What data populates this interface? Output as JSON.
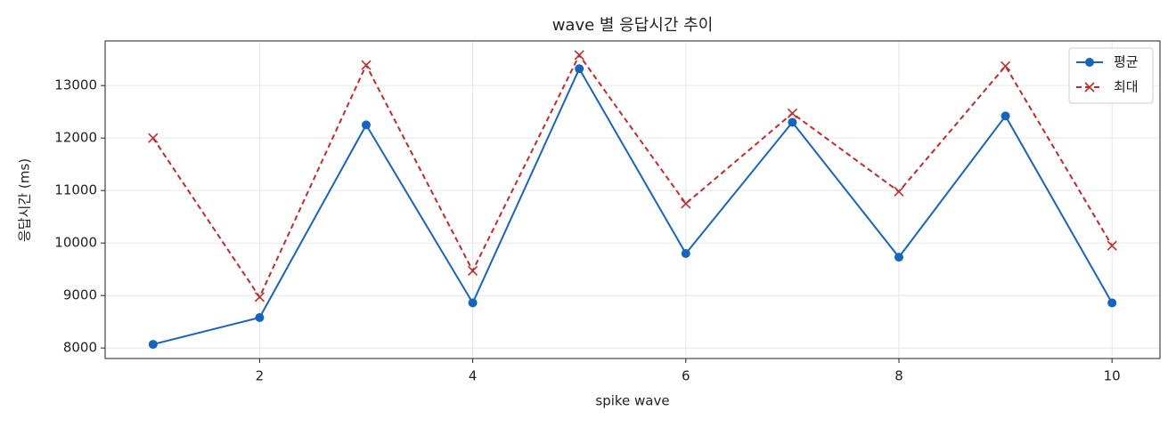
{
  "chart_data": {
    "type": "line",
    "title": "wave 별 응답시간 추이",
    "x_label": "spike wave",
    "y_label": "응답시간 (ms)",
    "x": [
      1,
      2,
      3,
      4,
      5,
      6,
      7,
      8,
      9,
      10
    ],
    "series": [
      {
        "name": "평균",
        "color": "#1565c0",
        "marker": "o",
        "linestyle": "solid",
        "values": [
          8070,
          8580,
          12250,
          8860,
          13320,
          9800,
          12300,
          9730,
          12420,
          8860
        ]
      },
      {
        "name": "최대",
        "color": "#c62828",
        "marker": "x",
        "linestyle": "dashed",
        "values": [
          12000,
          8970,
          13390,
          9470,
          13580,
          10750,
          12470,
          10980,
          13370,
          9950
        ]
      }
    ],
    "xlim": [
      0.55,
      10.45
    ],
    "xticks": [
      2,
      4,
      6,
      8,
      10
    ],
    "ylim": [
      7800,
      13850
    ],
    "yticks": [
      8000,
      9000,
      10000,
      11000,
      12000,
      13000
    ],
    "grid": true,
    "legend": "upper right"
  }
}
